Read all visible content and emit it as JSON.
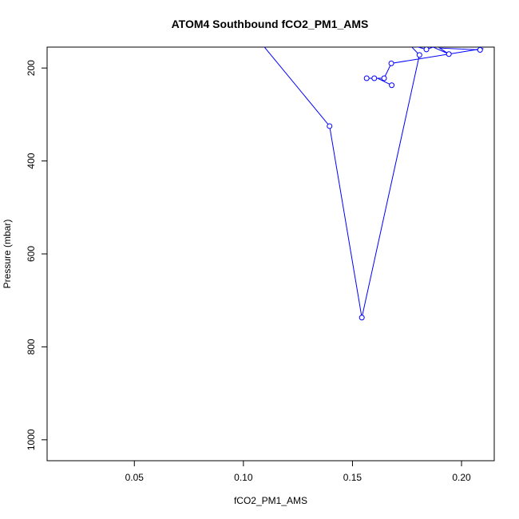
{
  "chart_data": {
    "type": "line",
    "title": "ATOM4 Southbound fCO2_PM1_AMS",
    "xlabel": "fCO2_PM1_AMS",
    "ylabel": "Pressure (mbar)",
    "xlim": [
      0.01,
      0.215
    ],
    "ylim": [
      1045,
      155
    ],
    "y_reversed": true,
    "x_ticks": [
      0.05,
      0.1,
      0.15,
      0.2
    ],
    "x_tick_labels": [
      "0.05",
      "0.10",
      "0.15",
      "0.20"
    ],
    "y_ticks": [
      200,
      400,
      600,
      800,
      1000
    ],
    "y_tick_labels": [
      "200",
      "400",
      "600",
      "800",
      "1000"
    ],
    "grid": false,
    "series": [
      {
        "color": "#0000ff",
        "marker": "open-circle",
        "points": [
          {
            "x": 0.107,
            "y": 140,
            "marker": false
          },
          {
            "x": 0.1395,
            "y": 325
          },
          {
            "x": 0.1543,
            "y": 737
          },
          {
            "x": 0.1807,
            "y": 172
          },
          {
            "x": 0.1762,
            "y": 150,
            "marker": false
          },
          {
            "x": 0.1839,
            "y": 160
          },
          {
            "x": 0.187,
            "y": 155,
            "marker": false
          },
          {
            "x": 0.1942,
            "y": 170
          },
          {
            "x": 0.19,
            "y": 157,
            "marker": false
          },
          {
            "x": 0.2085,
            "y": 161
          },
          {
            "x": 0.21,
            "y": 158,
            "marker": false
          },
          {
            "x": 0.1678,
            "y": 190
          },
          {
            "x": 0.1645,
            "y": 222
          },
          {
            "x": 0.16,
            "y": 222
          },
          {
            "x": 0.1565,
            "y": 222
          },
          {
            "x": 0.1615,
            "y": 222,
            "marker": false
          },
          {
            "x": 0.168,
            "y": 237
          }
        ]
      }
    ]
  }
}
